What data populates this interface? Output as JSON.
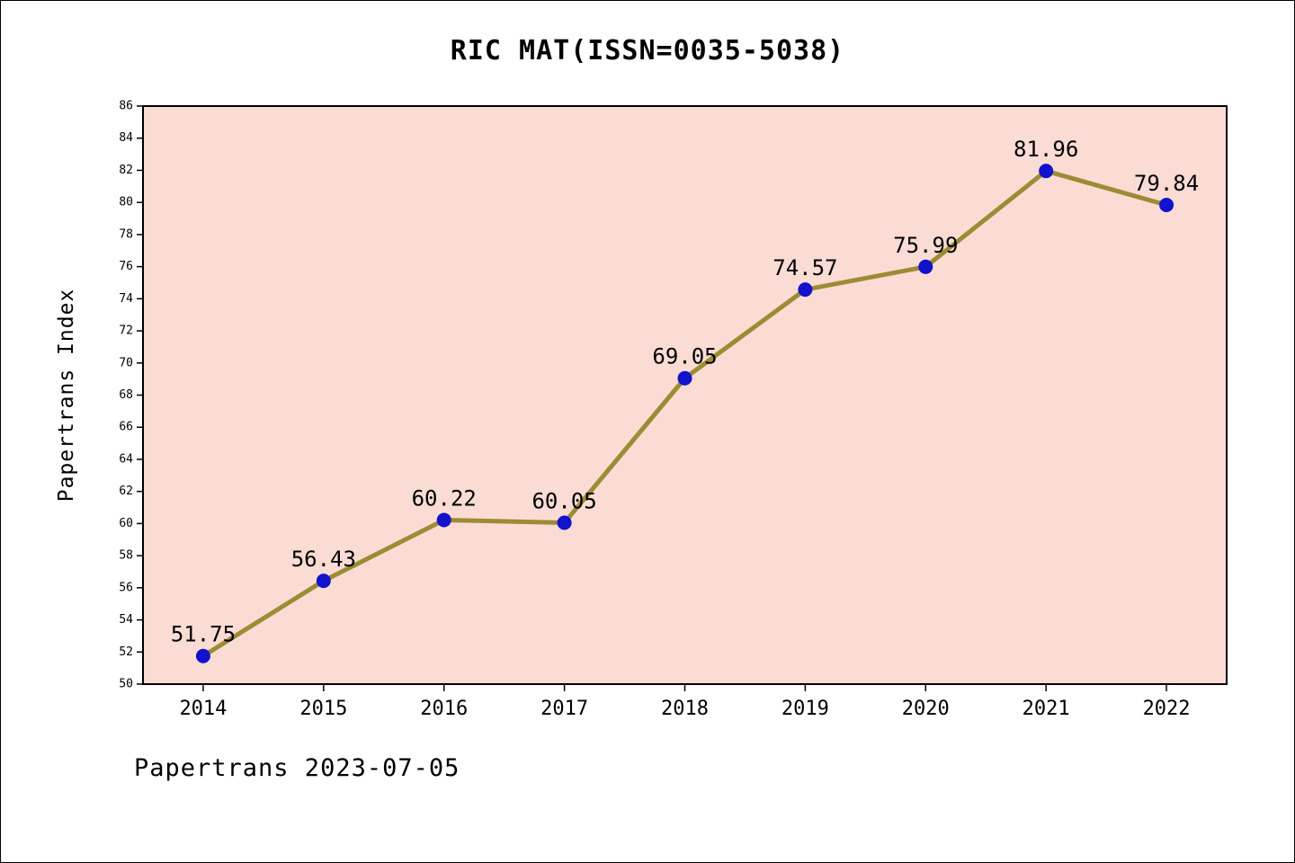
{
  "title": "RIC MAT(ISSN=0035-5038)",
  "footer": "Papertrans 2023-07-05",
  "chart_data": {
    "type": "line",
    "title": "RIC MAT(ISSN=0035-5038)",
    "categories": [
      "2014",
      "2015",
      "2016",
      "2017",
      "2018",
      "2019",
      "2020",
      "2021",
      "2022"
    ],
    "values": [
      51.75,
      56.43,
      60.22,
      60.05,
      69.05,
      74.57,
      75.99,
      81.96,
      79.84
    ],
    "point_labels": [
      "51.75",
      "56.43",
      "60.22",
      "60.05",
      "69.05",
      "74.57",
      "75.99",
      "81.96",
      "79.84"
    ],
    "xlabel": "",
    "ylabel": "Papertrans Index",
    "ylim": [
      50,
      86
    ],
    "ytick_step": 2,
    "grid": false,
    "legend": false,
    "colors": {
      "line": "#9c8c33",
      "marker": "#1212cc",
      "plot_bg": "#fbdcd5",
      "axis": "#000000",
      "text": "#000000"
    }
  }
}
